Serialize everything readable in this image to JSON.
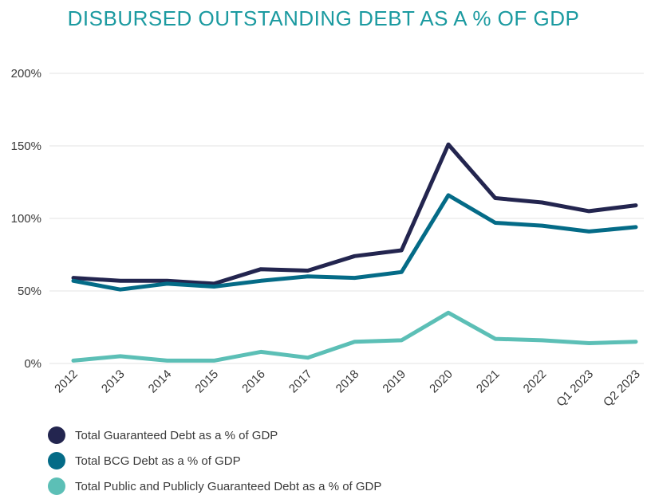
{
  "chart_data": {
    "type": "line",
    "title": "DISBURSED OUTSTANDING DEBT AS A % OF GDP",
    "title_color": "#1b9aa0",
    "x": [
      "2012",
      "2013",
      "2014",
      "2015",
      "2016",
      "2017",
      "2018",
      "2019",
      "2020",
      "2021",
      "2022",
      "Q1 2023",
      "Q2 2023"
    ],
    "ylim": [
      0,
      200
    ],
    "yticks": [
      0,
      50,
      100,
      150,
      200
    ],
    "ytick_labels": [
      "0%",
      "50%",
      "100%",
      "150%",
      "200%"
    ],
    "grid": true,
    "legend_position": "bottom-left",
    "series": [
      {
        "name": "Total Guaranteed Debt as a % of GDP",
        "color": "#23254f",
        "values": [
          59,
          57,
          57,
          55,
          65,
          64,
          74,
          78,
          151,
          114,
          111,
          105,
          109
        ]
      },
      {
        "name": "Total BCG Debt as a % of GDP",
        "color": "#046b87",
        "values": [
          57,
          51,
          55,
          53,
          57,
          60,
          59,
          63,
          116,
          97,
          95,
          91,
          94
        ]
      },
      {
        "name": "Total Public and Publicly Guaranteed Debt as a % of GDP",
        "color": "#5cbfb6",
        "values": [
          2,
          5,
          2,
          2,
          8,
          4,
          15,
          16,
          35,
          17,
          16,
          14,
          15
        ]
      }
    ]
  }
}
